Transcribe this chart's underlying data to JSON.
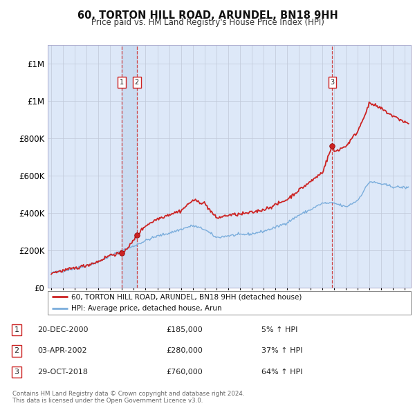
{
  "title": "60, TORTON HILL ROAD, ARUNDEL, BN18 9HH",
  "subtitle": "Price paid vs. HM Land Registry's House Price Index (HPI)",
  "legend_line1": "60, TORTON HILL ROAD, ARUNDEL, BN18 9HH (detached house)",
  "legend_line2": "HPI: Average price, detached house, Arun",
  "footnote1": "Contains HM Land Registry data © Crown copyright and database right 2024.",
  "footnote2": "This data is licensed under the Open Government Licence v3.0.",
  "transactions": [
    {
      "num": 1,
      "date": "20-DEC-2000",
      "price": 185000,
      "pct": "5%",
      "dir": "↑",
      "year": 2000.97
    },
    {
      "num": 2,
      "date": "03-APR-2002",
      "price": 280000,
      "pct": "37%",
      "dir": "↑",
      "year": 2002.25
    },
    {
      "num": 3,
      "date": "29-OCT-2018",
      "price": 760000,
      "pct": "64%",
      "dir": "↑",
      "year": 2018.83
    }
  ],
  "hpi_color": "#7aaddc",
  "price_color": "#cc2222",
  "plot_bg": "#dde8f8",
  "shaded_region": [
    2000.97,
    2002.25
  ],
  "ylim": [
    0,
    1300000
  ],
  "xlim": [
    1994.7,
    2025.5
  ],
  "yticks": [
    0,
    200000,
    400000,
    600000,
    800000,
    1000000,
    1200000
  ],
  "hpi_knots_x": [
    1995,
    1996,
    1997,
    1998,
    1999,
    2000,
    2001,
    2002,
    2003,
    2004,
    2005,
    2006,
    2007,
    2008,
    2009,
    2010,
    2011,
    2012,
    2013,
    2014,
    2015,
    2016,
    2017,
    2018,
    2019,
    2020,
    2021,
    2022,
    2023,
    2024,
    2025.3
  ],
  "hpi_knots_y": [
    78000,
    90000,
    103000,
    118000,
    138000,
    170000,
    198000,
    222000,
    252000,
    276000,
    292000,
    312000,
    332000,
    312000,
    268000,
    278000,
    283000,
    288000,
    302000,
    322000,
    348000,
    388000,
    418000,
    452000,
    452000,
    432000,
    468000,
    568000,
    555000,
    540000,
    535000
  ],
  "price_knots_x": [
    1995,
    1996,
    1997,
    1998,
    1999,
    2000,
    2000.97,
    2001.8,
    2002.25,
    2003,
    2004,
    2005,
    2006,
    2007,
    2008,
    2009,
    2010,
    2011,
    2012,
    2013,
    2014,
    2015,
    2016,
    2017,
    2018,
    2018.83,
    2019,
    2020,
    2021,
    2022,
    2023,
    2024,
    2025.3
  ],
  "price_knots_y": [
    79000,
    91000,
    104000,
    120000,
    140000,
    175000,
    185000,
    235000,
    280000,
    332000,
    368000,
    392000,
    412000,
    468000,
    452000,
    372000,
    388000,
    393000,
    402000,
    418000,
    442000,
    472000,
    522000,
    568000,
    618000,
    760000,
    728000,
    758000,
    838000,
    988000,
    958000,
    918000,
    878000
  ],
  "noise_seed": 42,
  "noise_hpi": 3500,
  "noise_price": 4500
}
